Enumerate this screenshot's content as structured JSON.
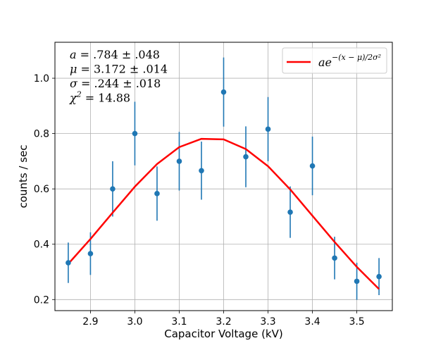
{
  "chart_data": {
    "type": "scatter",
    "xlabel": "Capacitor Voltage (kV)",
    "ylabel": "counts / sec",
    "xlim": [
      2.82,
      3.58
    ],
    "ylim": [
      0.16,
      1.13
    ],
    "xticks": [
      2.9,
      3.0,
      3.1,
      3.2,
      3.3,
      3.4,
      3.5
    ],
    "xtick_labels": [
      "2.9",
      "3.0",
      "3.1",
      "3.2",
      "3.3",
      "3.4",
      "3.5"
    ],
    "yticks": [
      0.2,
      0.4,
      0.6,
      0.8,
      1.0
    ],
    "ytick_labels": [
      "0.2",
      "0.4",
      "0.6",
      "0.8",
      "1.0"
    ],
    "grid": true,
    "legend_position": "top-right",
    "colors": {
      "data": "#1f77b4",
      "fit": "#ff0000"
    },
    "series": [
      {
        "type": "errorbar",
        "x": [
          2.85,
          2.9,
          2.95,
          3.0,
          3.05,
          3.1,
          3.15,
          3.2,
          3.25,
          3.3,
          3.35,
          3.4,
          3.45,
          3.5,
          3.55
        ],
        "y": [
          0.333,
          0.366,
          0.6,
          0.8,
          0.583,
          0.7,
          0.666,
          0.95,
          0.716,
          0.816,
          0.516,
          0.683,
          0.35,
          0.266,
          0.283
        ],
        "err": [
          0.073,
          0.077,
          0.1,
          0.115,
          0.098,
          0.106,
          0.105,
          0.125,
          0.11,
          0.116,
          0.093,
          0.106,
          0.077,
          0.067,
          0.067
        ]
      },
      {
        "name": "ae^{-(x-μ)/2σ²}",
        "type": "line",
        "x": [
          2.85,
          2.9,
          2.95,
          3.0,
          3.05,
          3.1,
          3.15,
          3.2,
          3.25,
          3.3,
          3.35,
          3.4,
          3.45,
          3.5,
          3.55
        ],
        "y": [
          0.329,
          0.419,
          0.514,
          0.608,
          0.69,
          0.751,
          0.781,
          0.779,
          0.744,
          0.682,
          0.598,
          0.503,
          0.408,
          0.318,
          0.238
        ]
      }
    ],
    "annotations": [
      {
        "var": "a",
        "text": " = .784 ± .048"
      },
      {
        "var": "μ",
        "text": " = 3.172 ± .014"
      },
      {
        "var": "σ",
        "text": " = .244 ± .018"
      },
      {
        "var": "χ",
        "sup": "2",
        "text": " = 14.88"
      }
    ],
    "legend": {
      "base": "ae",
      "exponent": "−(x − μ)/2σ²"
    }
  }
}
